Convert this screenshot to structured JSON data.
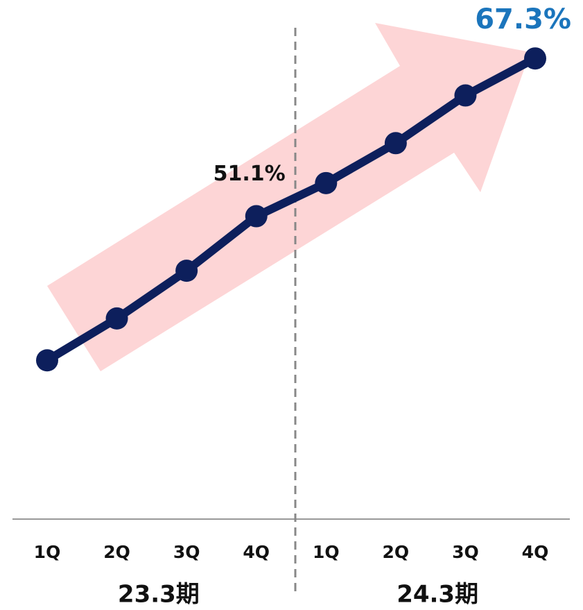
{
  "chart_data": {
    "type": "line",
    "categories": [
      "1Q",
      "2Q",
      "3Q",
      "4Q",
      "1Q",
      "2Q",
      "3Q",
      "4Q"
    ],
    "groups": [
      "23.3期",
      "24.3期"
    ],
    "values": [
      36.3,
      40.6,
      45.5,
      51.1,
      54.5,
      58.6,
      63.5,
      67.3
    ],
    "value_labels": [
      null,
      null,
      null,
      "51.1%",
      null,
      null,
      null,
      "67.3%"
    ],
    "value_label_colors": [
      null,
      null,
      null,
      "#111111",
      null,
      null,
      null,
      "#1b75bc"
    ],
    "color": "#0d1f5c",
    "ylim": [
      20,
      73.3
    ]
  }
}
